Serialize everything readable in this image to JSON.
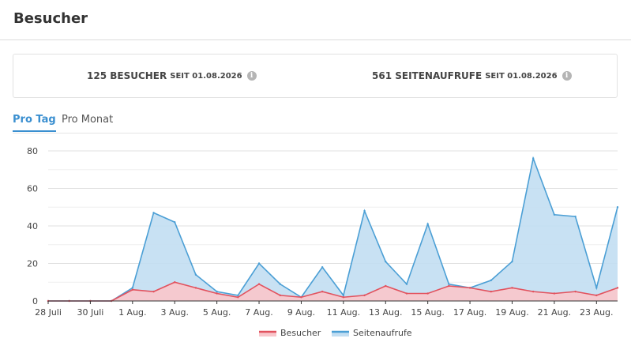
{
  "header": {
    "title": "Besucher"
  },
  "stats": {
    "visitors": {
      "main": "125 BESUCHER",
      "since": "SEIT 01.08.2026",
      "icon": "info-icon"
    },
    "pageviews": {
      "main": "561 SEITENAUFRUFE",
      "since": "SEIT 01.08.2026",
      "icon": "info-icon"
    }
  },
  "tabs": [
    {
      "label": "Pro Tag",
      "active": true
    },
    {
      "label": "Pro Monat",
      "active": false
    }
  ],
  "colors": {
    "accent": "#3a8fd0",
    "besucher_line": "#e2525e",
    "besucher_fill": "#f9c6cb",
    "seiten_line": "#4b9fd5",
    "seiten_fill": "#c2def2"
  },
  "chart_data": {
    "type": "area",
    "x": [
      "28 Juli",
      "29 Juli",
      "30 Juli",
      "31 Juli",
      "1 Aug.",
      "2 Aug.",
      "3 Aug.",
      "4 Aug.",
      "5 Aug.",
      "6 Aug.",
      "7 Aug.",
      "8 Aug.",
      "9 Aug.",
      "10 Aug.",
      "11 Aug.",
      "12 Aug.",
      "13 Aug.",
      "14 Aug.",
      "15 Aug.",
      "16 Aug.",
      "17 Aug.",
      "18 Aug.",
      "19 Aug.",
      "20 Aug.",
      "21 Aug.",
      "22 Aug.",
      "23 Aug.",
      "24 Aug."
    ],
    "x_tick_labels": [
      "28 Juli",
      "30 Juli",
      "1 Aug.",
      "3 Aug.",
      "5 Aug.",
      "7 Aug.",
      "9 Aug.",
      "11 Aug.",
      "13 Aug.",
      "15 Aug.",
      "17 Aug.",
      "19 Aug.",
      "21 Aug.",
      "23 Aug."
    ],
    "y_ticks": [
      "0",
      "20",
      "40",
      "60",
      "80"
    ],
    "ylim": [
      0,
      80
    ],
    "grid": true,
    "legend_position": "bottom-center",
    "series": [
      {
        "name": "Seitenaufrufe",
        "values": [
          0,
          0,
          0,
          0,
          7,
          47,
          42,
          14,
          5,
          3,
          20,
          9,
          2,
          18,
          3,
          48,
          21,
          9,
          41,
          9,
          7,
          11,
          21,
          76,
          46,
          45,
          7,
          50
        ]
      },
      {
        "name": "Besucher",
        "values": [
          0,
          0,
          0,
          0,
          6,
          5,
          10,
          7,
          4,
          2,
          9,
          3,
          2,
          5,
          2,
          3,
          8,
          4,
          4,
          8,
          7,
          5,
          7,
          5,
          4,
          5,
          3,
          7
        ]
      }
    ]
  }
}
